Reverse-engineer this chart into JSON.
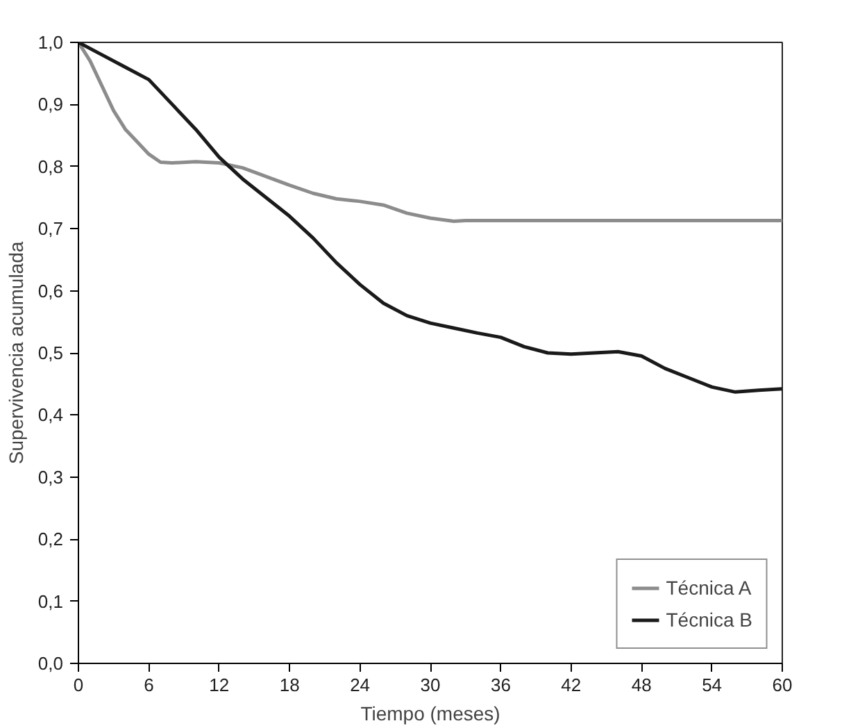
{
  "chart_data": {
    "type": "line",
    "xlabel": "Tiempo (meses)",
    "ylabel": "Supervivencia acumulada",
    "xlim": [
      0,
      60
    ],
    "xticks": [
      0,
      6,
      12,
      18,
      24,
      30,
      36,
      42,
      48,
      54,
      60
    ],
    "ylim": [
      0,
      1
    ],
    "yticks": [
      {
        "value": 0,
        "label": "0,0"
      },
      {
        "value": 0.1,
        "label": "0,1"
      },
      {
        "value": 0.2,
        "label": "0,2"
      },
      {
        "value": 0.3,
        "label": "0,3"
      },
      {
        "value": 0.4,
        "label": "0,4"
      },
      {
        "value": 0.5,
        "label": "0,5"
      },
      {
        "value": 0.6,
        "label": "0,6"
      },
      {
        "value": 0.7,
        "label": "0,7"
      },
      {
        "value": 0.8,
        "label": "0,8"
      },
      {
        "value": 0.9,
        "label": "0,9"
      },
      {
        "value": 1,
        "label": "1,0"
      }
    ],
    "grid": false,
    "legend": "bottom right",
    "line_style": "solid",
    "series": [
      {
        "name": "Técnica A",
        "color": "#8c8c8c",
        "x": [
          0,
          1,
          2,
          3,
          4,
          5,
          6,
          7,
          8,
          10,
          12,
          14,
          16,
          18,
          20,
          22,
          24,
          26,
          28,
          30,
          32,
          33,
          60
        ],
        "values": [
          1.0,
          0.97,
          0.93,
          0.89,
          0.86,
          0.84,
          0.82,
          0.807,
          0.806,
          0.808,
          0.806,
          0.798,
          0.784,
          0.77,
          0.757,
          0.748,
          0.744,
          0.738,
          0.725,
          0.717,
          0.712,
          0.713,
          0.713
        ]
      },
      {
        "name": "Técnica B",
        "color": "#1a1a1a",
        "x": [
          0,
          2,
          4,
          6,
          8,
          10,
          12,
          14,
          16,
          18,
          20,
          22,
          24,
          26,
          28,
          30,
          32,
          34,
          36,
          38,
          40,
          42,
          44,
          46,
          48,
          50,
          52,
          54,
          56,
          58,
          60
        ],
        "values": [
          1.0,
          0.98,
          0.96,
          0.94,
          0.9,
          0.86,
          0.815,
          0.78,
          0.75,
          0.72,
          0.685,
          0.645,
          0.61,
          0.58,
          0.56,
          0.548,
          0.54,
          0.532,
          0.525,
          0.51,
          0.5,
          0.498,
          0.5,
          0.502,
          0.495,
          0.475,
          0.46,
          0.445,
          0.437,
          0.44,
          0.442
        ]
      }
    ]
  }
}
